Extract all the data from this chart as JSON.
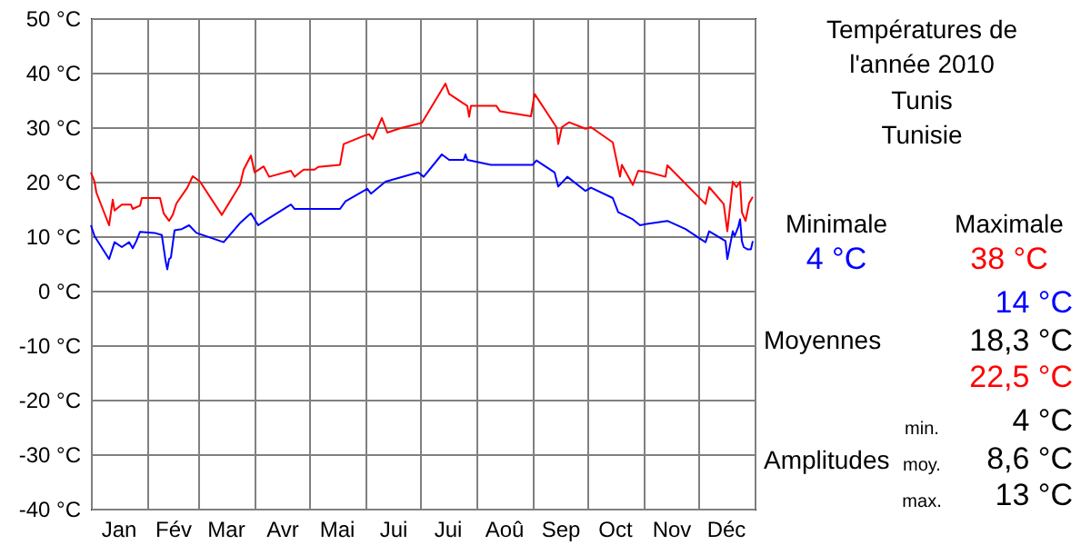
{
  "chart_data": {
    "type": "line",
    "title": "Températures de\nl'année 2010",
    "subtitle": "Tunis\nTunisie",
    "xlim": [
      "2010-01-01",
      "2011-01-01"
    ],
    "ylim": [
      -40,
      50
    ],
    "xticks": [
      {
        "value": "2010-01-01",
        "label": null
      },
      {
        "value": "2010-01-16",
        "label": "Jan"
      },
      {
        "value": "2010-02-01",
        "label": null
      },
      {
        "value": "2010-02-15",
        "label": "Fév"
      },
      {
        "value": "2010-03-01",
        "label": null
      },
      {
        "value": "2010-03-16",
        "label": "Mar"
      },
      {
        "value": "2010-04-01",
        "label": null
      },
      {
        "value": "2010-04-16",
        "label": "Avr"
      },
      {
        "value": "2010-05-01",
        "label": null
      },
      {
        "value": "2010-05-16",
        "label": "Mai"
      },
      {
        "value": "2010-06-01",
        "label": null
      },
      {
        "value": "2010-06-16",
        "label": "Jui"
      },
      {
        "value": "2010-07-01",
        "label": null
      },
      {
        "value": "2010-07-16",
        "label": "Jui"
      },
      {
        "value": "2010-08-01",
        "label": null
      },
      {
        "value": "2010-08-16",
        "label": "Aoû"
      },
      {
        "value": "2010-09-01",
        "label": null
      },
      {
        "value": "2010-09-16",
        "label": "Sep"
      },
      {
        "value": "2010-10-01",
        "label": null
      },
      {
        "value": "2010-10-16",
        "label": "Oct"
      },
      {
        "value": "2010-11-01",
        "label": null
      },
      {
        "value": "2010-11-16",
        "label": "Nov"
      },
      {
        "value": "2010-12-01",
        "label": null
      },
      {
        "value": "2010-12-16",
        "label": "Déc"
      },
      {
        "value": "2011-01-01",
        "label": null
      }
    ],
    "yticks": [
      {
        "value": -40,
        "label": "-40 °C"
      },
      {
        "value": -30,
        "label": "-30 °C"
      },
      {
        "value": -20,
        "label": "-20 °C"
      },
      {
        "value": -10,
        "label": "-10 °C"
      },
      {
        "value": 0,
        "label": "0 °C"
      },
      {
        "value": 10,
        "label": "10 °C"
      },
      {
        "value": 20,
        "label": "20 °C"
      },
      {
        "value": 30,
        "label": "30 °C"
      },
      {
        "value": 40,
        "label": "40 °C"
      },
      {
        "value": 50,
        "label": "50 °C"
      }
    ],
    "grid": true,
    "marker": "none",
    "line_style": "solid",
    "series": [
      {
        "color": "#0000ff",
        "x": [
          "2010-01-01",
          "2010-01-03",
          "2010-01-11",
          "2010-01-14",
          "2010-01-18",
          "2010-01-22",
          "2010-01-24",
          "2010-01-26",
          "2010-01-28",
          "2010-02-05",
          "2010-02-09",
          "2010-02-11",
          "2010-02-12",
          "2010-02-13",
          "2010-02-14",
          "2010-02-16",
          "2010-02-20",
          "2010-02-24",
          "2010-02-28",
          "2010-03-15",
          "2010-03-24",
          "2010-03-30",
          "2010-04-03",
          "2010-04-08",
          "2010-04-21",
          "2010-04-23",
          "2010-05-18",
          "2010-05-21",
          "2010-06-02",
          "2010-06-04",
          "2010-06-12",
          "2010-06-30",
          "2010-07-03",
          "2010-07-13",
          "2010-07-17",
          "2010-07-25",
          "2010-07-26",
          "2010-07-27",
          "2010-08-09",
          "2010-09-01",
          "2010-09-03",
          "2010-09-13",
          "2010-09-15",
          "2010-09-20",
          "2010-09-30",
          "2010-10-03",
          "2010-10-15",
          "2010-10-18",
          "2010-10-26",
          "2010-10-30",
          "2010-11-02",
          "2010-11-14",
          "2010-11-24",
          "2010-12-04",
          "2010-12-05",
          "2010-12-07",
          "2010-12-16",
          "2010-12-17",
          "2010-12-20",
          "2010-12-21",
          "2010-12-23",
          "2010-12-24",
          "2010-12-25",
          "2010-12-26",
          "2010-12-28",
          "2010-12-30",
          "2010-12-31"
        ],
        "values": [
          12,
          10,
          5.8,
          8.9,
          8,
          8.9,
          7.8,
          9.1,
          10.8,
          10.6,
          10.2,
          5.6,
          3.9,
          5.8,
          6.1,
          11.1,
          11.3,
          12,
          10.6,
          8.9,
          12.4,
          14.2,
          12,
          13.1,
          15.8,
          15,
          15,
          16.4,
          18.7,
          17.8,
          20,
          21.7,
          20.9,
          25,
          24,
          24,
          25,
          24,
          23.1,
          23.1,
          23.9,
          21.7,
          19.1,
          20.9,
          18.3,
          18.9,
          17,
          14.4,
          13.1,
          12,
          12.2,
          12.8,
          11.3,
          9.1,
          8.9,
          10.9,
          9.1,
          5.8,
          10.9,
          10,
          11.7,
          13.1,
          9.1,
          8,
          7.6,
          7.6,
          9.1
        ]
      },
      {
        "color": "#ff0000",
        "x": [
          "2010-01-01",
          "2010-01-03",
          "2010-01-04",
          "2010-01-11",
          "2010-01-13",
          "2010-01-14",
          "2010-01-18",
          "2010-01-23",
          "2010-01-24",
          "2010-01-28",
          "2010-01-29",
          "2010-02-08",
          "2010-02-10",
          "2010-02-13",
          "2010-02-15",
          "2010-02-17",
          "2010-02-23",
          "2010-02-26",
          "2010-03-02",
          "2010-03-14",
          "2010-03-24",
          "2010-03-26",
          "2010-03-30",
          "2010-04-01",
          "2010-04-06",
          "2010-04-09",
          "2010-04-21",
          "2010-04-23",
          "2010-04-28",
          "2010-05-04",
          "2010-05-06",
          "2010-05-18",
          "2010-05-20",
          "2010-05-31",
          "2010-06-03",
          "2010-06-05",
          "2010-06-10",
          "2010-06-13",
          "2010-06-20",
          "2010-07-02",
          "2010-07-15",
          "2010-07-17",
          "2010-07-27",
          "2010-07-28",
          "2010-07-29",
          "2010-08-12",
          "2010-08-14",
          "2010-08-31",
          "2010-09-02",
          "2010-09-14",
          "2010-09-15",
          "2010-09-17",
          "2010-09-21",
          "2010-09-30",
          "2010-10-03",
          "2010-10-15",
          "2010-10-19",
          "2010-10-20",
          "2010-10-26",
          "2010-10-29",
          "2010-11-04",
          "2010-11-13",
          "2010-11-14",
          "2010-12-05",
          "2010-12-07",
          "2010-12-15",
          "2010-12-17",
          "2010-12-18",
          "2010-12-20",
          "2010-12-22",
          "2010-12-24",
          "2010-12-25",
          "2010-12-27",
          "2010-12-29",
          "2010-12-31"
        ],
        "values": [
          21.7,
          20,
          18,
          12,
          16.7,
          14.7,
          15.8,
          15.8,
          15,
          15.6,
          17,
          17,
          14.2,
          12.8,
          13.9,
          16,
          18.9,
          21,
          20,
          13.9,
          19.4,
          22.2,
          24.8,
          21.7,
          22.8,
          20.9,
          22,
          20.9,
          22.2,
          22.2,
          22.7,
          23.1,
          26.9,
          28.4,
          28.7,
          27.8,
          31.7,
          29,
          29.8,
          30.8,
          38,
          36.1,
          33.9,
          31.9,
          33.9,
          33.9,
          32.9,
          32,
          36.1,
          30,
          26.9,
          30,
          30.9,
          29.7,
          30,
          27.2,
          20.9,
          23.1,
          19.4,
          22,
          21.7,
          20.9,
          23,
          15.9,
          19,
          15.9,
          10.9,
          13.9,
          20,
          19,
          20,
          14.4,
          12.8,
          16.1,
          17.2
        ]
      }
    ],
    "annotations": [
      "Minimale",
      "Maximale",
      "4 °C",
      "38 °C",
      "14 °C",
      "Moyennes",
      "18,3 °C",
      "22,5 °C",
      "min.",
      "4 °C",
      "Amplitudes",
      "moy.",
      "8,6 °C",
      "max.",
      "13 °C"
    ]
  }
}
